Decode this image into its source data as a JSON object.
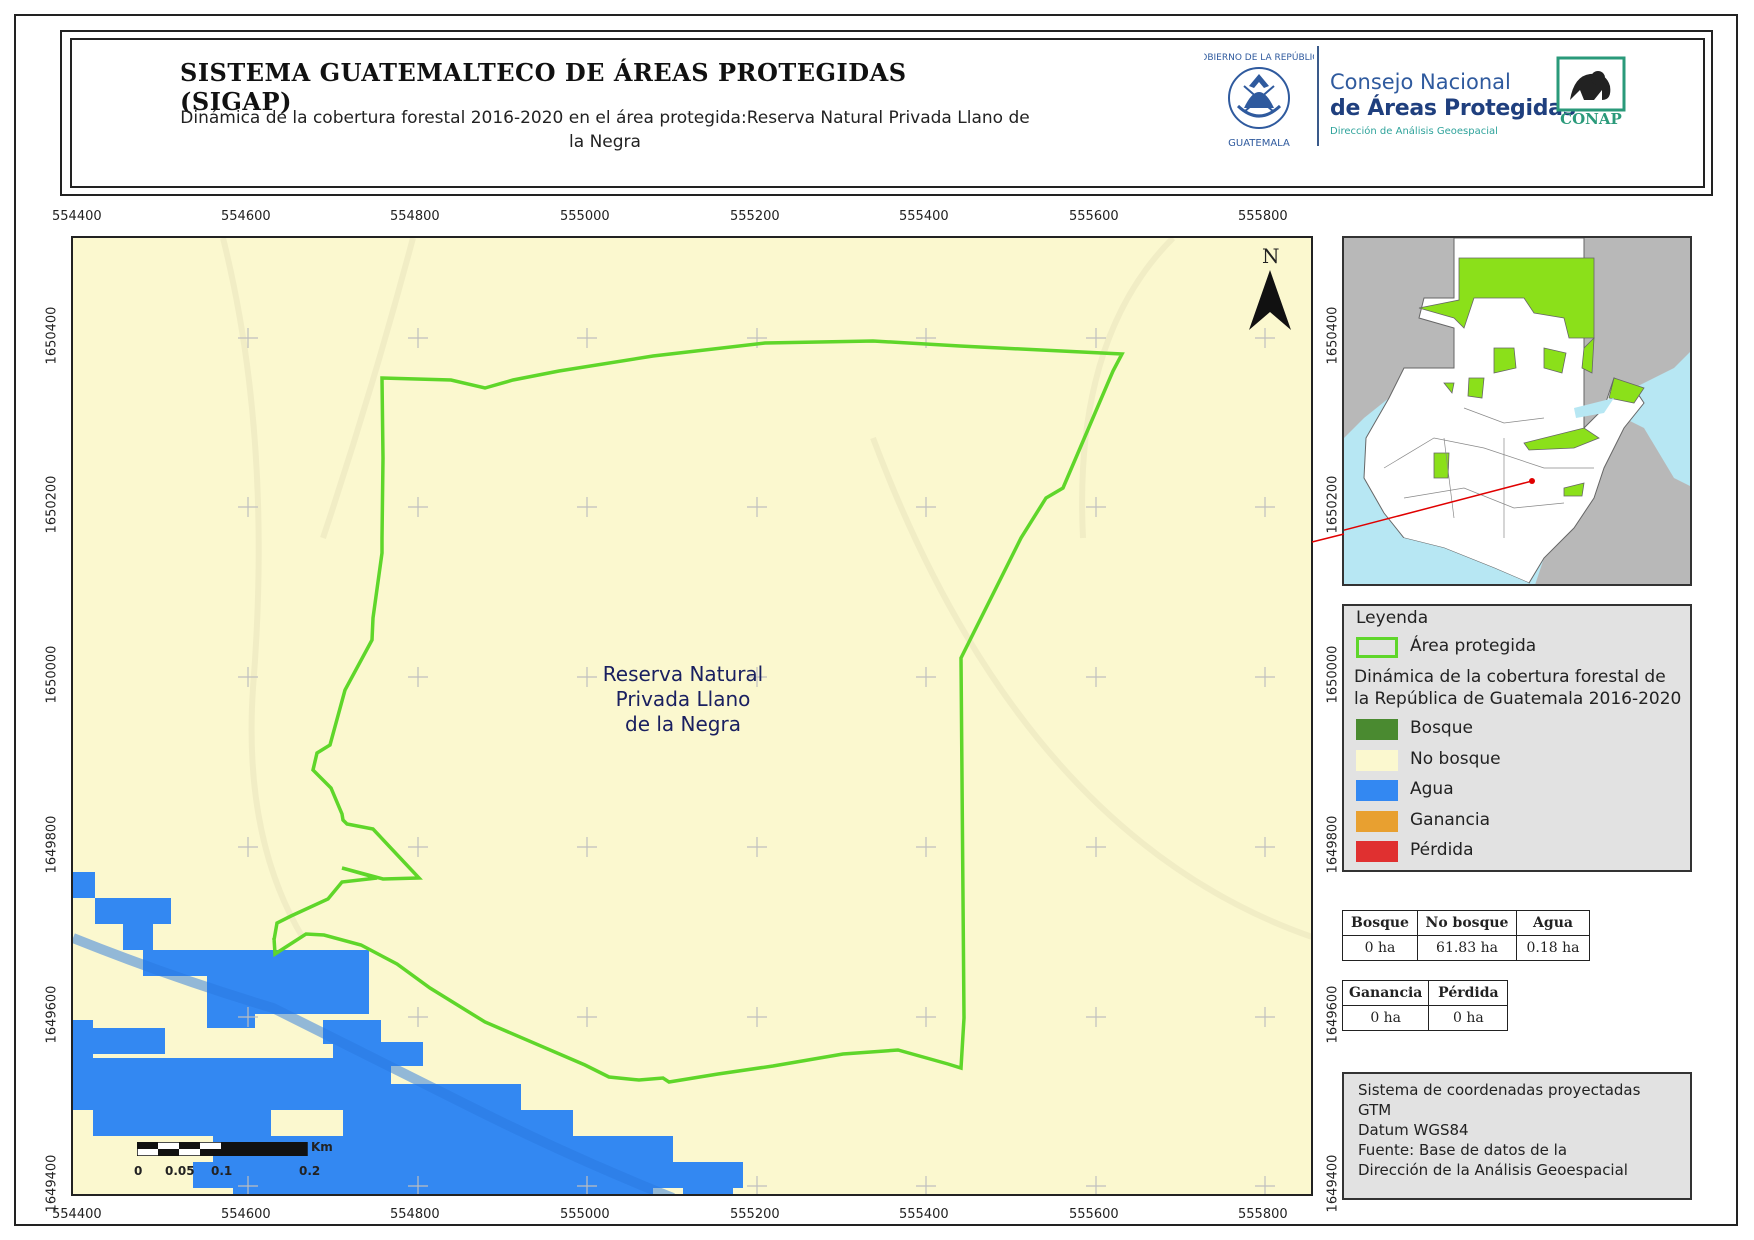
{
  "header": {
    "title": "SISTEMA GUATEMALTECO DE ÁREAS PROTEGIDAS  (SIGAP)",
    "subtitle": "Dinámica de la cobertura forestal 2016-2020 en el área protegida:Reserva Natural Privada Llano de la Negra"
  },
  "logos": {
    "seal_top_text": "GOBIERNO DE LA REPÚBLICA",
    "seal_bottom_text": "GUATEMALA",
    "consejo": "Consejo Nacional",
    "areas": "de Áreas Protegidas",
    "direccion": "Dirección de Análisis Geoespacial",
    "conap": "CONAP"
  },
  "map": {
    "x_ticks": [
      "554400",
      "554600",
      "554800",
      "555000",
      "555200",
      "555400",
      "555600",
      "555800"
    ],
    "y_ticks": [
      "1650400",
      "1650200",
      "1650000",
      "1649800",
      "1649600",
      "1649400"
    ],
    "area_label": [
      "Reserva Natural",
      "Privada Llano",
      "de la Negra"
    ],
    "north_label": "N",
    "scale": {
      "unit": "Km",
      "labels": [
        "0",
        "0.05",
        "0.1",
        "0.2"
      ]
    },
    "colors": {
      "no_bosque": "#fbf8cf",
      "agua": "#3388f2",
      "area": "#5fd62a"
    }
  },
  "legend": {
    "title": "Leyenda",
    "area_item": "Área protegida",
    "dynamics_title": "Dinámica de la cobertura forestal de la República de Guatemala 2016-2020",
    "items": [
      {
        "label": "Bosque",
        "color": "#4a8a30"
      },
      {
        "label": "No bosque",
        "color": "#fbf8cf"
      },
      {
        "label": "Agua",
        "color": "#3388f2"
      },
      {
        "label": "Ganancia",
        "color": "#e8a030"
      },
      {
        "label": "Pérdida",
        "color": "#e03030"
      }
    ]
  },
  "stats": {
    "table1": {
      "headers": [
        "Bosque",
        "No bosque",
        "Agua"
      ],
      "values": [
        "0 ha",
        "61.83 ha",
        "0.18 ha"
      ]
    },
    "table2": {
      "headers": [
        "Ganancia",
        "Pérdida"
      ],
      "values": [
        "0 ha",
        "0 ha"
      ]
    }
  },
  "coordinate_system": {
    "lines": [
      "Sistema de coordenadas proyectadas",
      "GTM",
      "Datum WGS84",
      "Fuente: Base de datos de la",
      "Dirección de la Análisis Geoespacial"
    ]
  }
}
